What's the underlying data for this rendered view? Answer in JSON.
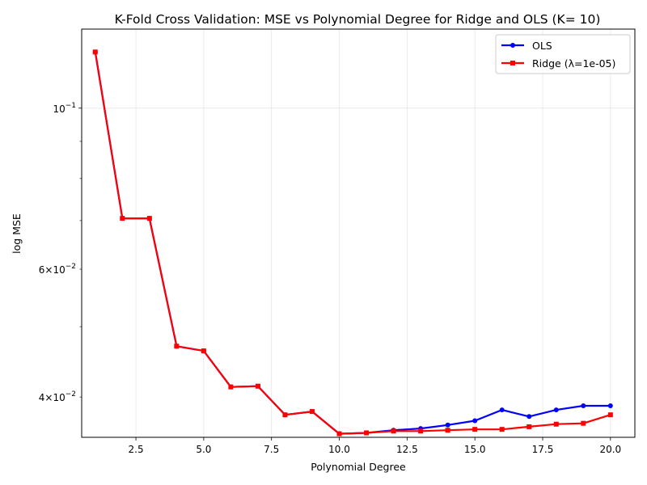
{
  "chart_data": {
    "type": "line",
    "title": "K-Fold Cross Validation: MSE vs Polynomial Degree for Ridge and OLS (K= 10)",
    "xlabel": "Polynomial Degree",
    "ylabel": "log MSE",
    "x": [
      1,
      2,
      3,
      4,
      5,
      6,
      7,
      8,
      9,
      10,
      11,
      12,
      13,
      14,
      15,
      16,
      17,
      18,
      19,
      20
    ],
    "xlim": [
      0.5,
      20.9
    ],
    "ylim": [
      0.0352,
      0.1285
    ],
    "yscale": "log",
    "x_ticks": [
      2.5,
      5.0,
      7.5,
      10.0,
      12.5,
      15.0,
      17.5,
      20.0
    ],
    "x_tick_labels": [
      "2.5",
      "5.0",
      "7.5",
      "10.0",
      "12.5",
      "15.0",
      "17.5",
      "20.0"
    ],
    "y_major_ticks": [
      0.1
    ],
    "y_major_tick_labels": [
      {
        "base": "10",
        "exp": "−1"
      }
    ],
    "y_minor_ticks": [
      0.04,
      0.05,
      0.06,
      0.07,
      0.08,
      0.09
    ],
    "y_minor_tick_labels": [
      {
        "value": 0.04,
        "mant": "4",
        "base": "10",
        "exp": "−2"
      },
      {
        "value": 0.06,
        "mant": "6",
        "base": "10",
        "exp": "−2"
      }
    ],
    "grid": true,
    "legend_position": "top-right",
    "series": [
      {
        "name": "OLS",
        "color": "#0000ff",
        "marker": "circle",
        "values": [
          0.1195,
          0.0705,
          0.0705,
          0.047,
          0.0463,
          0.0413,
          0.0414,
          0.0378,
          0.0382,
          0.0356,
          0.0357,
          0.036,
          0.0362,
          0.0366,
          0.0371,
          0.0384,
          0.0376,
          0.0384,
          0.0389,
          0.0389
        ]
      },
      {
        "name": "Ridge (λ=1e-05)",
        "color": "#ff0000",
        "marker": "square",
        "values": [
          0.1195,
          0.0705,
          0.0705,
          0.047,
          0.0463,
          0.0413,
          0.0414,
          0.0378,
          0.0382,
          0.0356,
          0.0357,
          0.0359,
          0.0359,
          0.036,
          0.0361,
          0.0361,
          0.0364,
          0.0367,
          0.0368,
          0.0378
        ]
      }
    ]
  }
}
